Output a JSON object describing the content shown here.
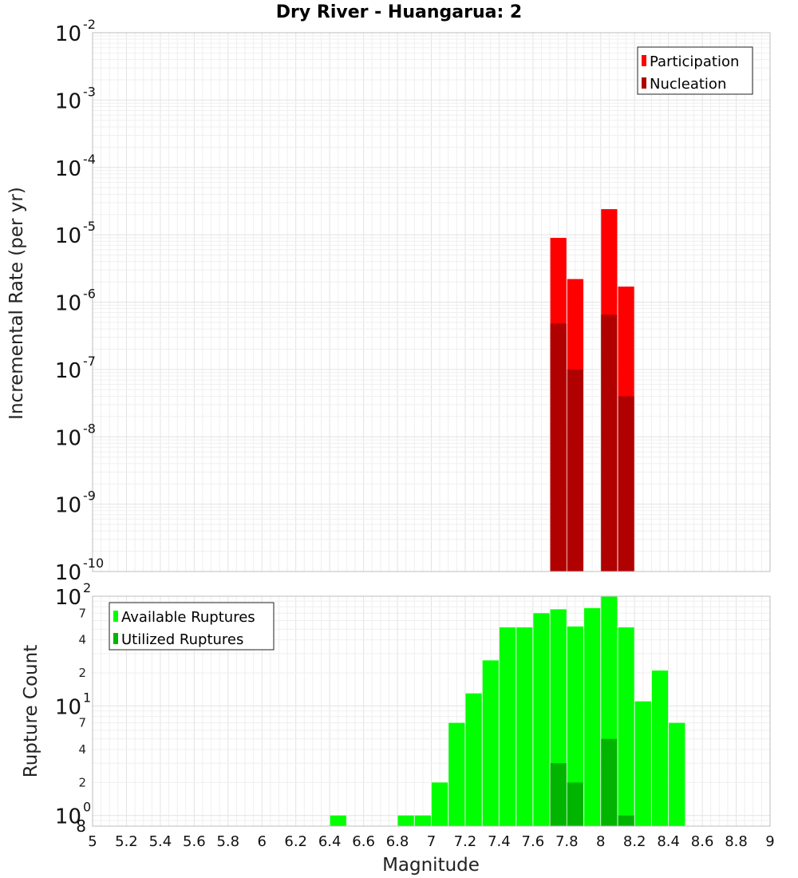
{
  "chart_data": [
    {
      "type": "bar",
      "title": "Dry River - Huangarua: 2",
      "xlabel": "Magnitude",
      "ylabel": "Incremental Rate (per yr)",
      "ylog": true,
      "ylim": [
        1e-10,
        0.01
      ],
      "xlim": [
        5,
        9
      ],
      "x_ticks": [
        "5",
        "5.2",
        "5.4",
        "5.6",
        "5.8",
        "6",
        "6.2",
        "6.4",
        "6.6",
        "6.8",
        "7",
        "7.2",
        "7.4",
        "7.6",
        "7.8",
        "8",
        "8.2",
        "8.4",
        "8.6",
        "8.8",
        "9"
      ],
      "y_ticks": [
        {
          "base": "10",
          "exp": "-10"
        },
        {
          "base": "10",
          "exp": "-9"
        },
        {
          "base": "10",
          "exp": "-8"
        },
        {
          "base": "10",
          "exp": "-7"
        },
        {
          "base": "10",
          "exp": "-6"
        },
        {
          "base": "10",
          "exp": "-5"
        },
        {
          "base": "10",
          "exp": "-4"
        },
        {
          "base": "10",
          "exp": "-3"
        },
        {
          "base": "10",
          "exp": "-2"
        }
      ],
      "grid": true,
      "legend_position": "top-right",
      "series": [
        {
          "name": "Participation",
          "color": "#ff0000",
          "x": [
            7.75,
            7.85,
            8.05,
            8.15
          ],
          "values": [
            9e-06,
            2.2e-06,
            2.4e-05,
            1.7e-06
          ]
        },
        {
          "name": "Nucleation",
          "color": "#b00000",
          "x": [
            7.75,
            7.85,
            8.05,
            8.15
          ],
          "values": [
            4.8e-07,
            1e-07,
            6.5e-07,
            4e-08
          ]
        }
      ]
    },
    {
      "type": "bar",
      "xlabel": "Magnitude",
      "ylabel": "Rupture Count",
      "ylog": true,
      "ylim": [
        0.8,
        100
      ],
      "xlim": [
        5,
        9
      ],
      "x_ticks": [
        "5",
        "5.2",
        "5.4",
        "5.6",
        "5.8",
        "6",
        "6.2",
        "6.4",
        "6.6",
        "6.8",
        "7",
        "7.2",
        "7.4",
        "7.6",
        "7.8",
        "8",
        "8.2",
        "8.4",
        "8.6",
        "8.8",
        "9"
      ],
      "y_major_ticks": [
        {
          "base": "10",
          "exp": "0"
        },
        {
          "base": "10",
          "exp": "1"
        },
        {
          "base": "10",
          "exp": "2"
        }
      ],
      "y_minor_ticks": [
        "8",
        "2",
        "4",
        "7",
        "2",
        "4",
        "7"
      ],
      "grid": true,
      "legend_position": "top-left",
      "series": [
        {
          "name": "Available Ruptures",
          "color": "#00ff00",
          "x": [
            6.45,
            6.85,
            6.95,
            7.05,
            7.15,
            7.25,
            7.35,
            7.45,
            7.55,
            7.65,
            7.75,
            7.85,
            7.95,
            8.05,
            8.15,
            8.25,
            8.35,
            8.45
          ],
          "values": [
            1,
            1,
            1,
            2,
            7,
            13,
            26,
            52,
            52,
            70,
            76,
            53,
            78,
            100,
            52,
            11,
            21,
            7
          ]
        },
        {
          "name": "Utilized Ruptures",
          "color": "#00b400",
          "x": [
            7.75,
            7.85,
            8.05,
            8.15
          ],
          "values": [
            3,
            2,
            5,
            1
          ]
        }
      ]
    }
  ]
}
